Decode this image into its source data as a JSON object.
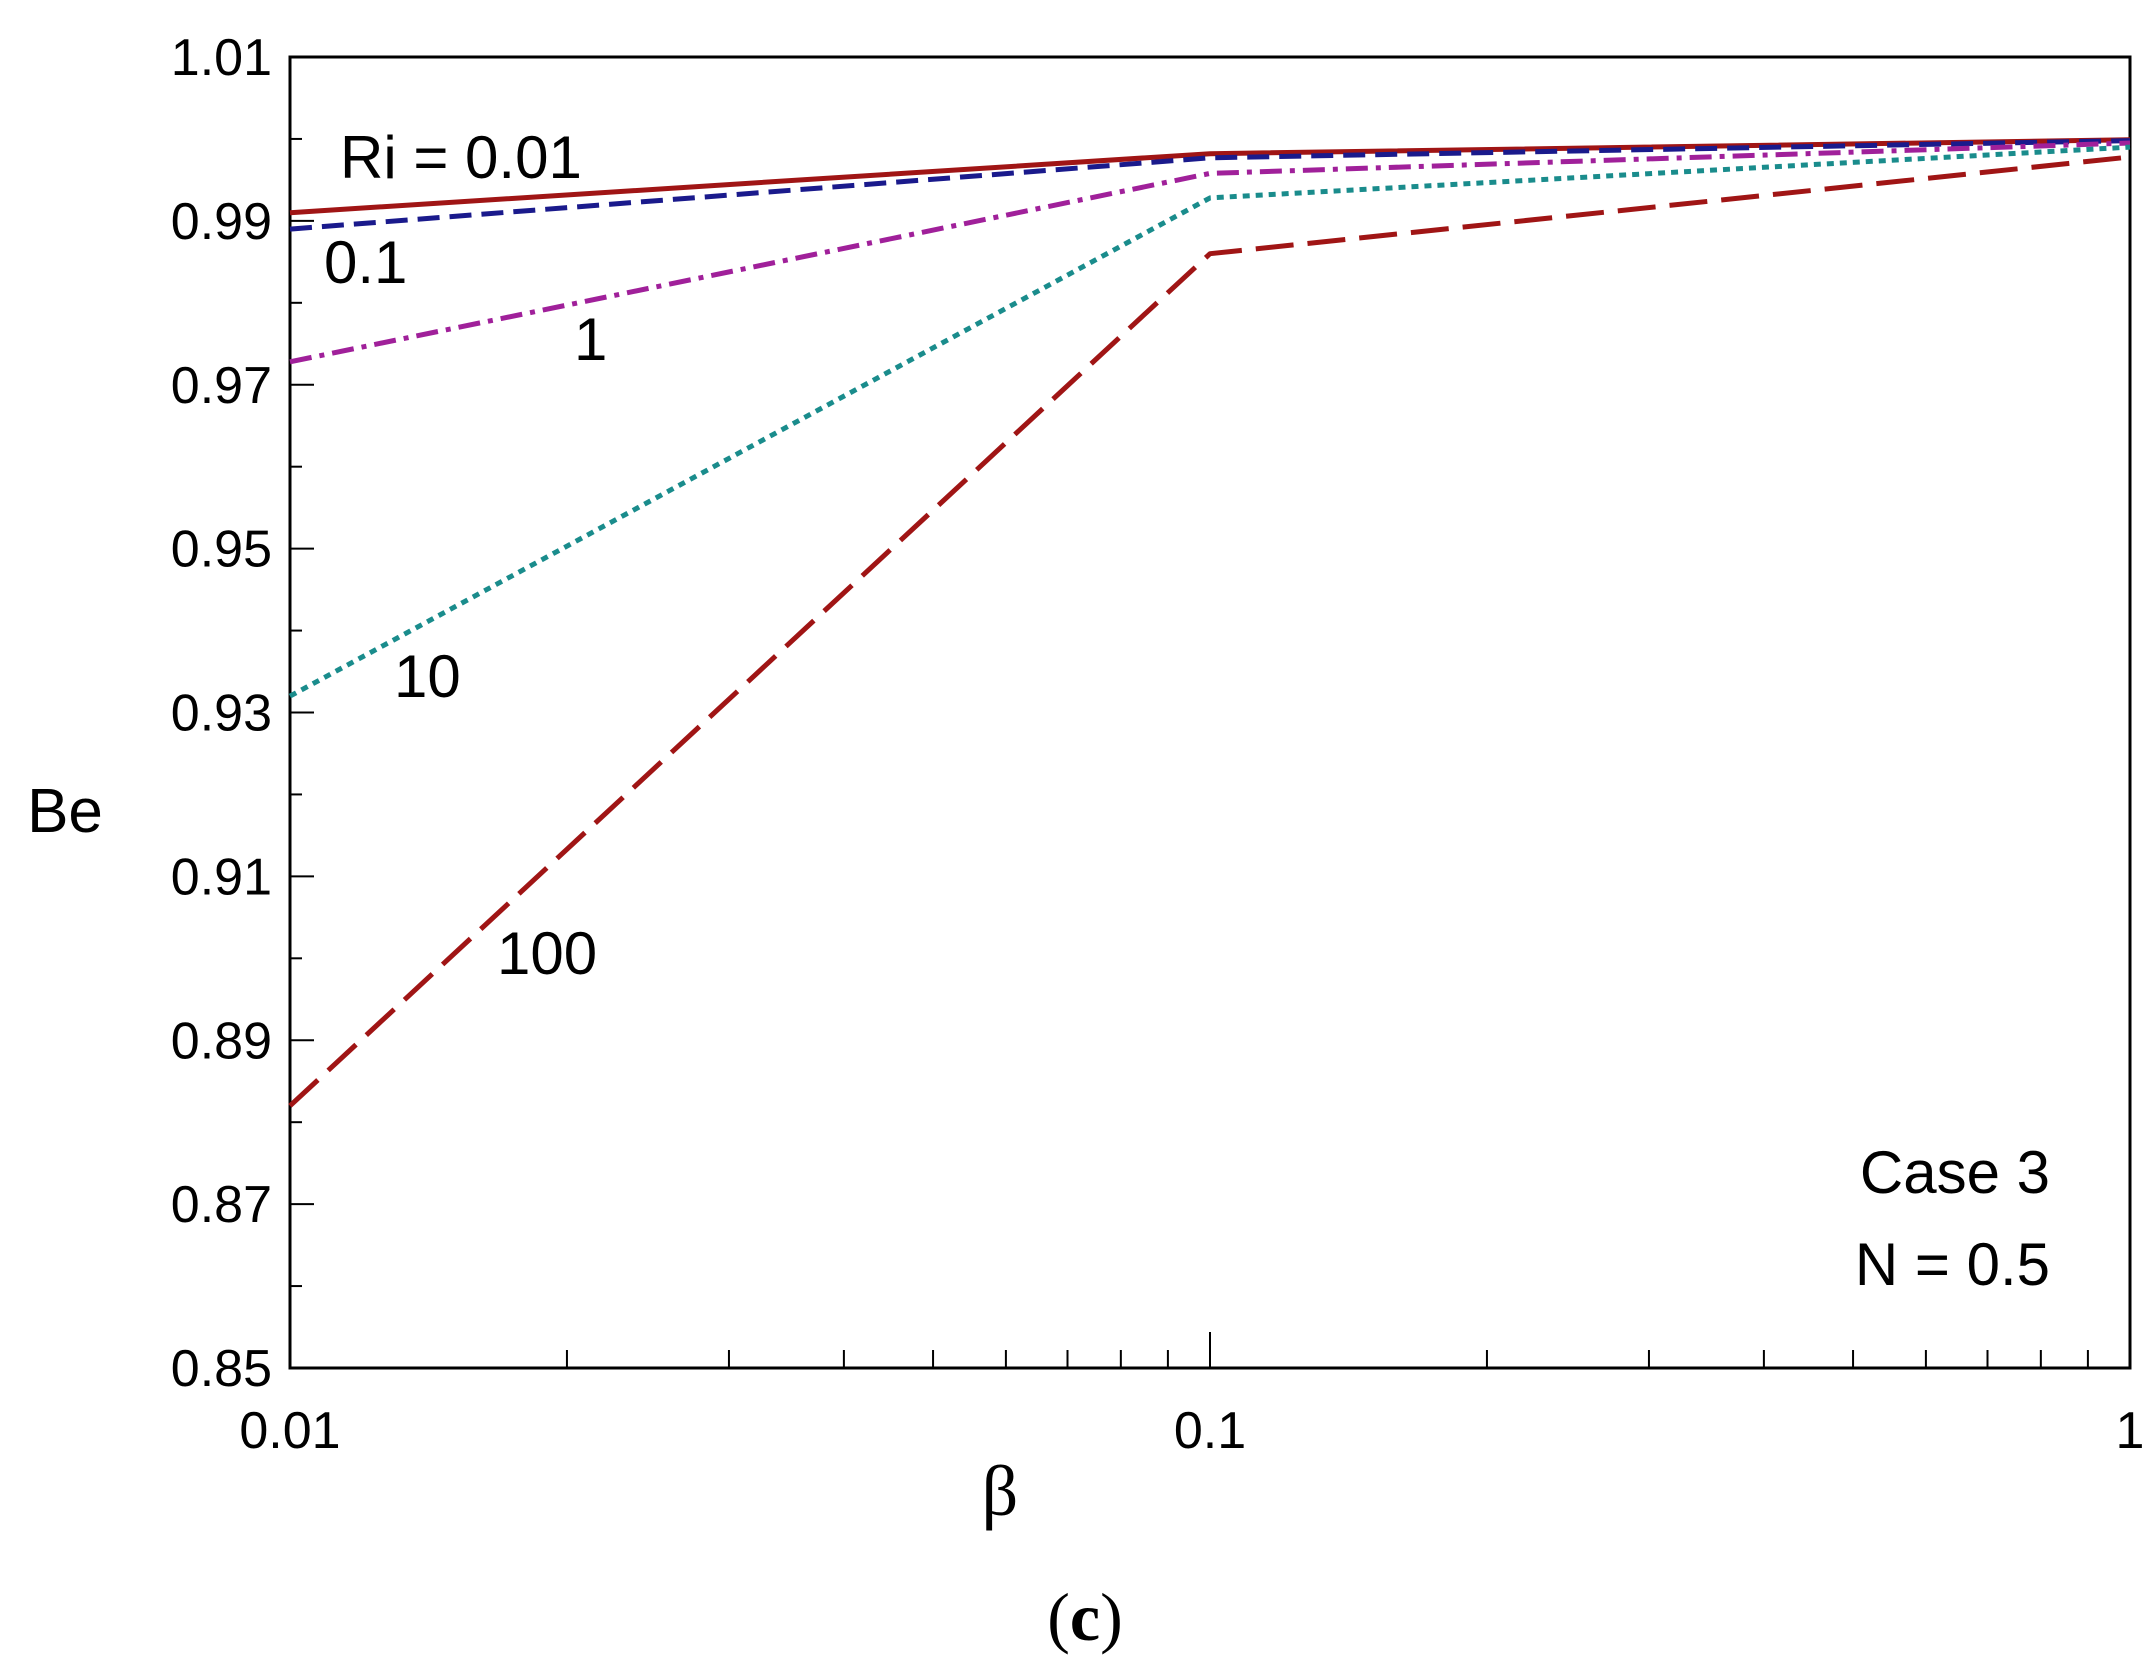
{
  "chart_data": {
    "type": "line",
    "xscale": "log",
    "xlabel": "β",
    "ylabel": "Be",
    "xlim": [
      0.01,
      1
    ],
    "ylim": [
      0.85,
      1.01
    ],
    "x": [
      0.01,
      0.1,
      1
    ],
    "x_tick_labels": [
      "0.01",
      "0.1",
      "1"
    ],
    "y_ticks": [
      0.85,
      0.87,
      0.89,
      0.91,
      0.93,
      0.95,
      0.97,
      0.99,
      1.01
    ],
    "y_tick_labels": [
      "0.85",
      "0.87",
      "0.89",
      "0.91",
      "0.93",
      "0.95",
      "0.97",
      "0.99",
      "1.01"
    ],
    "series": [
      {
        "name": "Ri = 0.01",
        "label": "Ri = 0.01",
        "values": [
          0.991,
          0.9982,
          0.9999
        ],
        "color": "#a01515",
        "dash": "solid"
      },
      {
        "name": "Ri = 0.1",
        "label": "0.1",
        "values": [
          0.989,
          0.9977,
          0.9998
        ],
        "color": "#1a1a8c",
        "dash": "dash"
      },
      {
        "name": "Ri = 1",
        "label": "1",
        "values": [
          0.9728,
          0.9958,
          0.9995
        ],
        "color": "#a0209a",
        "dash": "dashdot"
      },
      {
        "name": "Ri = 10",
        "label": "10",
        "values": [
          0.932,
          0.9928,
          0.999
        ],
        "color": "#1a8c8c",
        "dash": "dot"
      },
      {
        "name": "Ri = 100",
        "label": "100",
        "values": [
          0.882,
          0.986,
          0.9978
        ],
        "color": "#a01515",
        "dash": "longdash"
      }
    ],
    "annotations": [
      "Case 3",
      "N = 0.5"
    ],
    "caption_open": "(",
    "caption_letter": "c",
    "caption_close": ")",
    "grid": false
  }
}
